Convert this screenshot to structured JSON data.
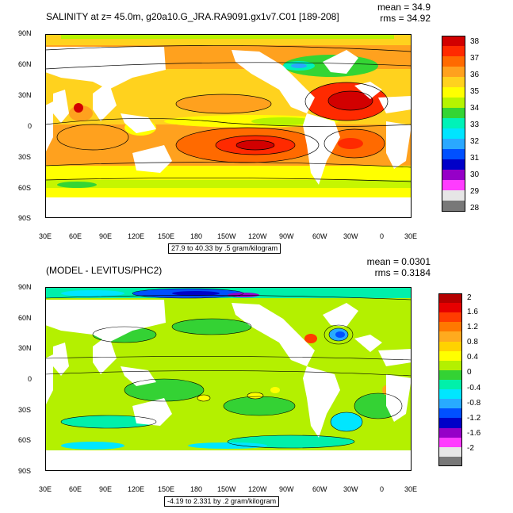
{
  "panel_top": {
    "title": "SALINITY at z=  45.0m, g20a10.G_JRA.RA9091.gx1v7.C01 [189-208]",
    "mean_text": "mean = 34.9",
    "rms_text": "rms = 34.92",
    "contour_info": "27.9 to 40.33 by .5 gram/kilogram",
    "colorbar_labels": [
      "38",
      "37",
      "36",
      "35",
      "34",
      "33",
      "32",
      "31",
      "30",
      "29",
      "28"
    ],
    "colorbar_colors": [
      "#d20000",
      "#ff2a00",
      "#ff6a00",
      "#ffa11e",
      "#ffd21e",
      "#ffff00",
      "#b6f400",
      "#34d534",
      "#00f2b8",
      "#00e5ff",
      "#2aa8ff",
      "#0050ff",
      "#0000c8",
      "#9600c8",
      "#ff3cff",
      "#e6e6e6",
      "#787878"
    ]
  },
  "panel_bottom": {
    "title": "(MODEL - LEVITUS/PHC2)",
    "mean_text": "mean = 0.0301",
    "rms_text": "rms = 0.3184",
    "contour_info": "-4.19 to 2.331 by .2 gram/kilogram",
    "colorbar_labels": [
      "2",
      "1.6",
      "1.2",
      "0.8",
      "0.4",
      "0",
      "-0.4",
      "-0.8",
      "-1.2",
      "-1.6",
      "-2"
    ],
    "colorbar_colors": [
      "#b40000",
      "#e60000",
      "#ff3c00",
      "#ff7800",
      "#ffaa1e",
      "#ffd200",
      "#ffff00",
      "#b4f000",
      "#34d234",
      "#00f0aa",
      "#00e6ff",
      "#28aaff",
      "#0050ff",
      "#0000c8",
      "#9600c8",
      "#ff3cff",
      "#e6e6e6",
      "#787878"
    ]
  },
  "lat_ticks": [
    "90N",
    "60N",
    "30N",
    "0",
    "30S",
    "60S",
    "90S"
  ],
  "lon_ticks": [
    "30E",
    "60E",
    "90E",
    "120E",
    "150E",
    "180",
    "150W",
    "120W",
    "90W",
    "60W",
    "30W",
    "0",
    "30E"
  ]
}
